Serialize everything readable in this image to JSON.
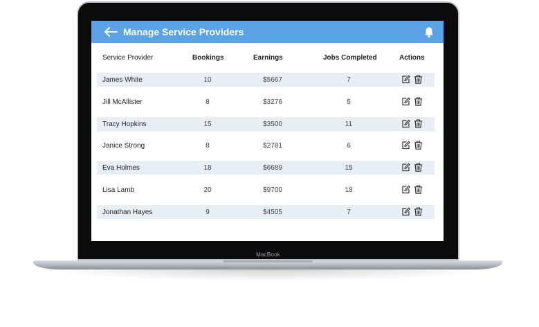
{
  "device": {
    "brand_label": "MacBook"
  },
  "header": {
    "title": "Manage Service Providers",
    "back_icon": "arrow-left-icon",
    "notification_icon": "bell-icon",
    "bar_color": "#5ba3e6"
  },
  "table": {
    "columns": [
      "Service Provider",
      "Bookings",
      "Earnings",
      "Jobs Completed",
      "Actions"
    ],
    "rows": [
      {
        "name": "James White",
        "bookings": "10",
        "earnings": "$5667",
        "jobs": "7"
      },
      {
        "name": "Jill McAllister",
        "bookings": "8",
        "earnings": "$3276",
        "jobs": "5"
      },
      {
        "name": "Tracy Hopkins",
        "bookings": "15",
        "earnings": "$3500",
        "jobs": "11"
      },
      {
        "name": "Janice Strong",
        "bookings": "8",
        "earnings": "$2781",
        "jobs": "6"
      },
      {
        "name": "Eva Holmes",
        "bookings": "18",
        "earnings": "$6689",
        "jobs": "15"
      },
      {
        "name": "Lisa Lamb",
        "bookings": "20",
        "earnings": "$9700",
        "jobs": "18"
      },
      {
        "name": "Jonathan Hayes",
        "bookings": "9",
        "earnings": "$4505",
        "jobs": "7"
      }
    ],
    "row_actions": [
      "edit-icon",
      "trash-icon"
    ],
    "stripe_color": "#e9eef4"
  }
}
